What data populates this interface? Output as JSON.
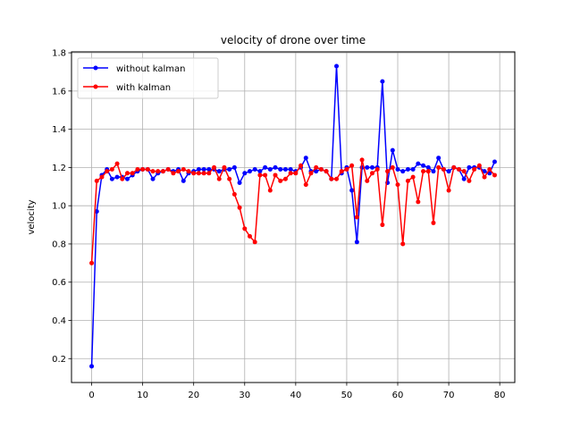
{
  "chart_data": {
    "type": "line",
    "title": "velocity of drone over time",
    "xlabel": "",
    "ylabel": "velocity",
    "xlim": [
      -3.95,
      82.95
    ],
    "ylim": [
      0.075,
      1.805
    ],
    "xticks": [
      0,
      10,
      20,
      30,
      40,
      50,
      60,
      70,
      80
    ],
    "yticks": [
      0.2,
      0.4,
      0.6,
      0.8,
      1.0,
      1.2,
      1.4,
      1.6,
      1.8
    ],
    "ytick_labels": [
      "0.2",
      "0.4",
      "0.6",
      "0.8",
      "1.0",
      "1.2",
      "1.4",
      "1.6",
      "1.8"
    ],
    "grid": true,
    "legend_position": "upper-left",
    "series": [
      {
        "name": "without kalman",
        "color": "#0000ff",
        "values": [
          0.16,
          0.97,
          1.16,
          1.19,
          1.14,
          1.15,
          1.15,
          1.14,
          1.16,
          1.18,
          1.19,
          1.19,
          1.14,
          1.17,
          1.18,
          1.19,
          1.18,
          1.19,
          1.13,
          1.17,
          1.18,
          1.19,
          1.19,
          1.19,
          1.19,
          1.18,
          1.19,
          1.19,
          1.2,
          1.12,
          1.17,
          1.18,
          1.19,
          1.18,
          1.2,
          1.19,
          1.2,
          1.19,
          1.19,
          1.19,
          1.18,
          1.2,
          1.25,
          1.18,
          1.18,
          1.19,
          1.18,
          1.14,
          1.73,
          1.17,
          1.2,
          1.08,
          0.81,
          1.2,
          1.2,
          1.2,
          1.2,
          1.65,
          1.12,
          1.29,
          1.19,
          1.18,
          1.19,
          1.19,
          1.22,
          1.21,
          1.2,
          1.18,
          1.25,
          1.19,
          1.18,
          1.2,
          1.19,
          1.14,
          1.2,
          1.2,
          1.2,
          1.18,
          1.17,
          1.23
        ]
      },
      {
        "name": "with kalman",
        "color": "#ff0000",
        "values": [
          0.7,
          1.13,
          1.15,
          1.18,
          1.19,
          1.22,
          1.14,
          1.17,
          1.17,
          1.19,
          1.19,
          1.19,
          1.18,
          1.18,
          1.18,
          1.19,
          1.17,
          1.18,
          1.19,
          1.18,
          1.17,
          1.17,
          1.17,
          1.17,
          1.2,
          1.14,
          1.2,
          1.14,
          1.06,
          0.99,
          0.88,
          0.84,
          0.81,
          1.16,
          1.16,
          1.08,
          1.16,
          1.13,
          1.14,
          1.17,
          1.17,
          1.21,
          1.11,
          1.17,
          1.2,
          1.19,
          1.18,
          1.14,
          1.14,
          1.18,
          1.19,
          1.21,
          0.94,
          1.24,
          1.13,
          1.17,
          1.19,
          0.9,
          1.18,
          1.2,
          1.11,
          0.8,
          1.13,
          1.15,
          1.02,
          1.18,
          1.18,
          0.91,
          1.2,
          1.19,
          1.08,
          1.2,
          1.19,
          1.18,
          1.13,
          1.19,
          1.21,
          1.15,
          1.19,
          1.16
        ]
      }
    ]
  }
}
